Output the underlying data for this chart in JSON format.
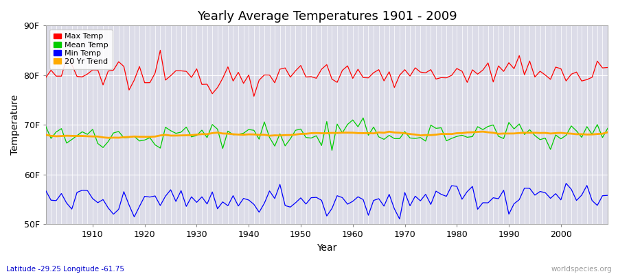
{
  "title": "Yearly Average Temperatures 1901 - 2009",
  "xlabel": "Year",
  "ylabel": "Temperature",
  "year_start": 1901,
  "year_end": 2009,
  "ylim": [
    50,
    90
  ],
  "yticks": [
    50,
    60,
    70,
    80,
    90
  ],
  "ytick_labels": [
    "50F",
    "60F",
    "70F",
    "80F",
    "90F"
  ],
  "xticks": [
    1910,
    1920,
    1930,
    1940,
    1950,
    1960,
    1970,
    1980,
    1990,
    2000
  ],
  "background_color": "#dcdce8",
  "grid_color": "#ffffff",
  "max_temp_color": "#ff0000",
  "mean_temp_color": "#00cc00",
  "min_temp_color": "#0000ff",
  "trend_color": "#ffaa00",
  "legend_labels": [
    "Max Temp",
    "Mean Temp",
    "Min Temp",
    "20 Yr Trend"
  ],
  "subtitle_left": "Latitude -29.25 Longitude -61.75",
  "subtitle_right": "worldspecies.org",
  "max_temp_base": 80.0,
  "mean_temp_base": 67.8,
  "min_temp_base": 55.0,
  "max_temp_std": 1.5,
  "mean_temp_std": 1.2,
  "min_temp_std": 1.4
}
